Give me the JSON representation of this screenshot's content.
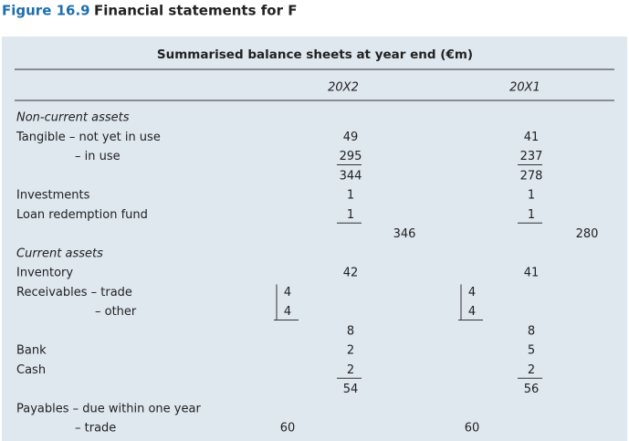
{
  "figure": {
    "number": "Figure 16.9",
    "title": "Financial statements for F"
  },
  "table": {
    "caption": "Summarised balance sheets at year end (€m)",
    "columns": [
      "20X2",
      "20X1"
    ],
    "rows": [
      {
        "label": "Non-current assets"
      },
      {
        "label": "Tangible – not yet in use",
        "x2_main": 49,
        "x1_main": 41
      },
      {
        "label": "– in use",
        "x2_main": 295,
        "x1_main": 237
      },
      {
        "x2_main": 344,
        "x1_main": 278
      },
      {
        "label": "Investments",
        "x2_main": 1,
        "x1_main": 1
      },
      {
        "label": "Loan redemption fund",
        "x2_main": 1,
        "x1_main": 1
      },
      {
        "x2_total": 346,
        "x1_total": 280
      },
      {
        "label": "Current assets"
      },
      {
        "label": "Inventory",
        "x2_main": 42,
        "x1_main": 41
      },
      {
        "label": "Receivables – trade",
        "x2_inner": 4,
        "x1_inner": 4
      },
      {
        "label": "– other",
        "x2_inner": 4,
        "x1_inner": 4
      },
      {
        "x2_main": 8,
        "x1_main": 8
      },
      {
        "label": "Bank",
        "x2_main": 2,
        "x1_main": 5
      },
      {
        "label": "Cash",
        "x2_main": 2,
        "x1_main": 2
      },
      {
        "x2_main": 54,
        "x1_main": 56
      },
      {
        "label": "Payables – due within one year"
      },
      {
        "label": "– trade",
        "x2_inner": 60,
        "x1_inner": 60
      }
    ]
  }
}
